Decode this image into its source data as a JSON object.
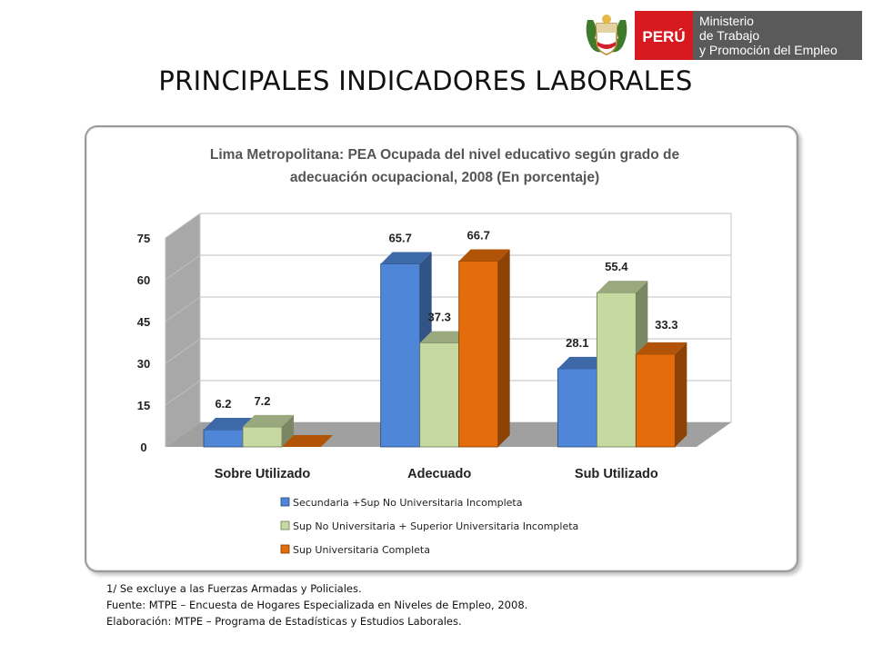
{
  "header": {
    "logo_peru": "PERÚ",
    "logo_ministry_lines": [
      "Ministerio",
      "de Trabajo",
      "y Promoción del Empleo"
    ],
    "slide_title": "PRINCIPALES INDICADORES LABORALES"
  },
  "chart_data": {
    "type": "bar",
    "title_lines": [
      "Lima Metropolitana: PEA Ocupada del nivel educativo según grado de",
      "adecuación ocupacional, 2008 (En porcentaje)"
    ],
    "categories": [
      "Sobre Utilizado",
      "Adecuado",
      "Sub Utilizado"
    ],
    "series": [
      {
        "name": "Secundaria +Sup No Universitaria Incompleta",
        "values": [
          6.2,
          65.7,
          28.1
        ],
        "color": "#4f86d8",
        "labels": [
          "6.2",
          "65.7",
          "28.1"
        ]
      },
      {
        "name": "Sup No Universitaria + Superior Universitaria Incompleta",
        "values": [
          7.2,
          37.3,
          55.4
        ],
        "color": "#c6d9a0",
        "labels": [
          "7.2",
          "37.3",
          "55.4"
        ]
      },
      {
        "name": "Sup Universitaria Completa",
        "values": [
          0,
          66.7,
          33.3
        ],
        "color": "#e46c0a",
        "labels": [
          "",
          "66.7",
          "33.3"
        ]
      }
    ],
    "yticks": [
      "0",
      "15",
      "30",
      "45",
      "60",
      "75"
    ],
    "ylim": [
      0,
      75
    ],
    "legend_position": "bottom",
    "grid": true
  },
  "footnotes": [
    "1/ Se excluye a las Fuerzas Armadas y Policiales.",
    "Fuente: MTPE – Encuesta de Hogares Especializada en Niveles de Empleo, 2008.",
    "Elaboración: MTPE – Programa de Estadísticas y Estudios Laborales."
  ]
}
